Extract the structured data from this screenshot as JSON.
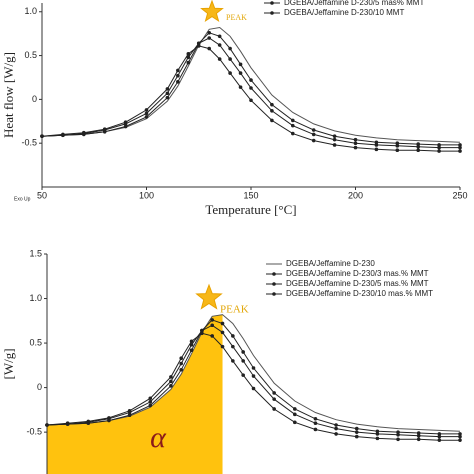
{
  "chart_data": [
    {
      "type": "line",
      "x_label": "Temperature [°C]",
      "y_label": "Heat flow [W/g]",
      "note": "Exo Up",
      "annotation": "PEAK",
      "x": [
        50,
        60,
        70,
        80,
        90,
        100,
        110,
        115,
        120,
        125,
        130,
        135,
        140,
        145,
        150,
        160,
        170,
        180,
        190,
        200,
        210,
        220,
        230,
        240,
        250
      ],
      "series": [
        {
          "color": "#555555",
          "marker": "none",
          "values": [
            -0.42,
            -0.41,
            -0.4,
            -0.37,
            -0.32,
            -0.22,
            -0.02,
            0.15,
            0.38,
            0.62,
            0.8,
            0.82,
            0.72,
            0.55,
            0.36,
            0.05,
            -0.15,
            -0.28,
            -0.36,
            -0.41,
            -0.44,
            -0.46,
            -0.47,
            -0.48,
            -0.49
          ]
        },
        {
          "color": "#222222",
          "marker": "circle",
          "values": [
            -0.42,
            -0.41,
            -0.4,
            -0.37,
            -0.31,
            -0.2,
            0.02,
            0.2,
            0.42,
            0.64,
            0.76,
            0.72,
            0.58,
            0.4,
            0.22,
            -0.06,
            -0.24,
            -0.35,
            -0.42,
            -0.46,
            -0.49,
            -0.5,
            -0.51,
            -0.52,
            -0.52
          ]
        },
        {
          "name": "DGEBA/Jeffamine D-230/5 mas% MMT",
          "color": "#222222",
          "marker": "circle",
          "values": [
            -0.42,
            -0.41,
            -0.39,
            -0.35,
            -0.28,
            -0.16,
            0.07,
            0.27,
            0.48,
            0.64,
            0.7,
            0.62,
            0.46,
            0.3,
            0.13,
            -0.13,
            -0.3,
            -0.4,
            -0.46,
            -0.5,
            -0.52,
            -0.53,
            -0.54,
            -0.55,
            -0.55
          ]
        },
        {
          "name": "DGEBA/Jeffamine D-230/10 MMT",
          "color": "#222222",
          "marker": "circle",
          "values": [
            -0.42,
            -0.4,
            -0.38,
            -0.34,
            -0.26,
            -0.12,
            0.12,
            0.33,
            0.52,
            0.61,
            0.58,
            0.46,
            0.3,
            0.14,
            -0.01,
            -0.24,
            -0.39,
            -0.47,
            -0.52,
            -0.55,
            -0.57,
            -0.58,
            -0.58,
            -0.59,
            -0.59
          ]
        }
      ],
      "xlim": [
        50,
        250
      ],
      "xticks": [
        50,
        100,
        150,
        200,
        250
      ],
      "ylim": [
        -1,
        1.1
      ],
      "yticks": [
        {
          "value": 1,
          "label": "1.0"
        },
        0.5,
        0,
        -0.5
      ],
      "legend": "upper right"
    },
    {
      "type": "line",
      "y_label": "[W/g]",
      "annotation": "PEAK",
      "area_label": "α",
      "fill_color": "#ffc20e",
      "x": [
        50,
        60,
        70,
        80,
        90,
        100,
        110,
        115,
        120,
        125,
        130,
        135,
        140,
        145,
        150,
        160,
        170,
        180,
        190,
        200,
        210,
        220,
        230,
        240,
        250
      ],
      "series": [
        {
          "name": "DGEBA/Jeffamine D-230",
          "color": "#555555",
          "marker": "none",
          "values": [
            -0.42,
            -0.41,
            -0.4,
            -0.37,
            -0.32,
            -0.22,
            -0.02,
            0.15,
            0.38,
            0.62,
            0.8,
            0.82,
            0.72,
            0.55,
            0.36,
            0.05,
            -0.15,
            -0.28,
            -0.36,
            -0.41,
            -0.44,
            -0.46,
            -0.47,
            -0.48,
            -0.49
          ]
        },
        {
          "name": "DGEBA/Jeffamine D-230/3 mas.% MMT",
          "color": "#222222",
          "marker": "circle",
          "values": [
            -0.42,
            -0.41,
            -0.4,
            -0.37,
            -0.31,
            -0.2,
            0.02,
            0.2,
            0.42,
            0.64,
            0.76,
            0.72,
            0.58,
            0.4,
            0.22,
            -0.06,
            -0.24,
            -0.35,
            -0.42,
            -0.46,
            -0.49,
            -0.5,
            -0.51,
            -0.52,
            -0.52
          ]
        },
        {
          "name": "DGEBA/Jeffamine D-230/5 mas.% MMT",
          "color": "#222222",
          "marker": "circle",
          "values": [
            -0.42,
            -0.41,
            -0.39,
            -0.35,
            -0.28,
            -0.16,
            0.07,
            0.27,
            0.48,
            0.64,
            0.7,
            0.62,
            0.46,
            0.3,
            0.13,
            -0.13,
            -0.3,
            -0.4,
            -0.46,
            -0.5,
            -0.52,
            -0.53,
            -0.54,
            -0.55,
            -0.55
          ]
        },
        {
          "name": "DGEBA/Jeffamine D-230/10 mas.% MMT",
          "color": "#222222",
          "marker": "circle",
          "values": [
            -0.42,
            -0.4,
            -0.38,
            -0.34,
            -0.26,
            -0.12,
            0.12,
            0.33,
            0.52,
            0.61,
            0.58,
            0.46,
            0.3,
            0.14,
            -0.01,
            -0.24,
            -0.39,
            -0.47,
            -0.52,
            -0.55,
            -0.57,
            -0.58,
            -0.58,
            -0.59,
            -0.59
          ]
        }
      ],
      "xlim": [
        50,
        250
      ],
      "ylim": [
        -0.97,
        1.5
      ],
      "yticks": [
        1.5,
        {
          "value": 1,
          "label": "1.0"
        },
        0.5,
        0,
        -0.5
      ],
      "legend": "upper right"
    }
  ]
}
